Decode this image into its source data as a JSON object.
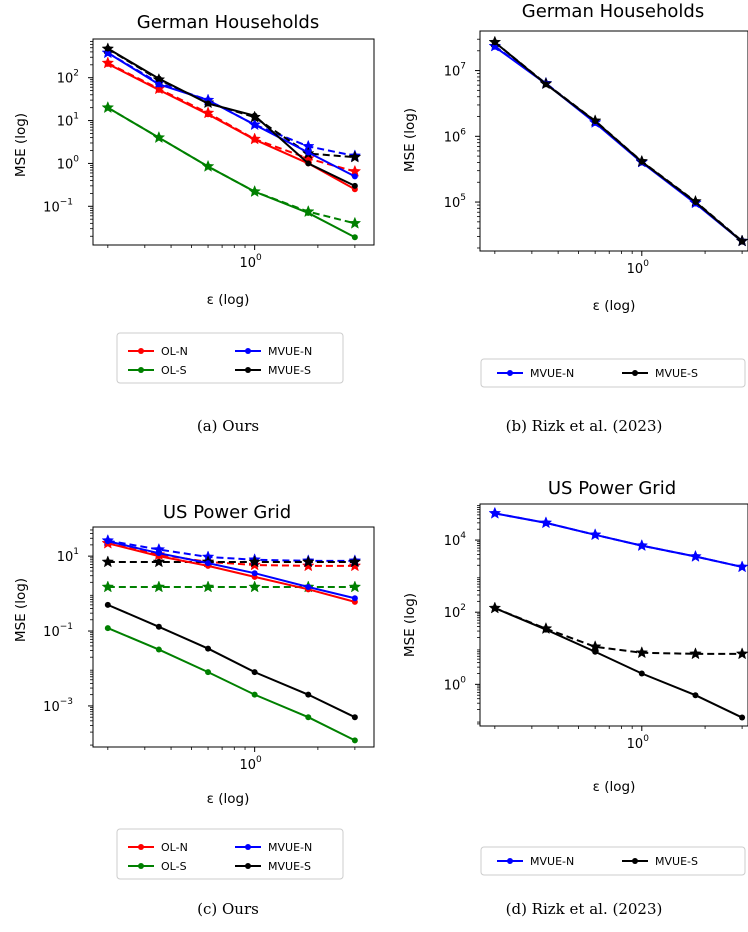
{
  "chart_data": [
    {
      "panel": "a",
      "type": "line",
      "title": "German Households",
      "xlabel": "ε (log)",
      "ylabel": "MSE (log)",
      "xscale": "log",
      "yscale": "log",
      "xlim": [
        0.17,
        3.7
      ],
      "ylim": [
        0.0125,
        800
      ],
      "x": [
        0.2,
        0.35,
        0.6,
        1.0,
        1.8,
        3.0
      ],
      "xticks": [
        {
          "value": 1,
          "label": "10",
          "exp": "0"
        }
      ],
      "yticks": [
        {
          "value": 0.1,
          "label": "10",
          "exp": "−1"
        },
        {
          "value": 1,
          "label": "10",
          "exp": "0"
        },
        {
          "value": 10,
          "label": "10",
          "exp": "1"
        },
        {
          "value": 100,
          "label": "10",
          "exp": "2"
        }
      ],
      "series": [
        {
          "name": "OL-N",
          "color": "#ff0000",
          "style": "solid",
          "marker": "dot",
          "values": [
            210,
            52,
            14,
            3.6,
            1.0,
            0.25
          ]
        },
        {
          "name": "",
          "color": "#ff0000",
          "style": "dashed",
          "marker": "star",
          "values": [
            220,
            55,
            15,
            3.7,
            1.3,
            0.65
          ]
        },
        {
          "name": "OL-S",
          "color": "#008000",
          "style": "solid",
          "marker": "dot",
          "values": [
            20,
            4.0,
            0.85,
            0.22,
            0.07,
            0.019
          ]
        },
        {
          "name": "",
          "color": "#008000",
          "style": "dashed",
          "marker": "star",
          "values": [
            20,
            4.0,
            0.85,
            0.22,
            0.075,
            0.04
          ]
        },
        {
          "name": "MVUE-N",
          "color": "#0000ff",
          "style": "solid",
          "marker": "dot",
          "values": [
            380,
            70,
            30,
            8.0,
            1.8,
            0.5
          ]
        },
        {
          "name": "",
          "color": "#0000ff",
          "style": "dashed",
          "marker": "star",
          "values": [
            380,
            75,
            30,
            8.0,
            2.5,
            1.5
          ]
        },
        {
          "name": "MVUE-S",
          "color": "#000000",
          "style": "solid",
          "marker": "dot",
          "values": [
            480,
            95,
            25,
            13,
            1.0,
            0.3
          ]
        },
        {
          "name": "",
          "color": "#000000",
          "style": "dashed",
          "marker": "star",
          "values": [
            470,
            90,
            26,
            12,
            1.7,
            1.4
          ]
        }
      ],
      "legend": {
        "placement": "below",
        "columns": 2,
        "entries": [
          {
            "name": "OL-N",
            "color": "#ff0000"
          },
          {
            "name": "MVUE-N",
            "color": "#0000ff"
          },
          {
            "name": "OL-S",
            "color": "#008000"
          },
          {
            "name": "MVUE-S",
            "color": "#000000"
          }
        ]
      },
      "caption": "(a) Ours"
    },
    {
      "panel": "b",
      "type": "line",
      "title": "German Households",
      "xlabel": "ε (log)",
      "ylabel": "MSE (log)",
      "xscale": "log",
      "yscale": "log",
      "xlim": [
        0.17,
        3.2
      ],
      "ylim": [
        18000,
        40000000
      ],
      "x": [
        0.2,
        0.35,
        0.6,
        1.0,
        1.8,
        3.0
      ],
      "xticks": [
        {
          "value": 1,
          "label": "10",
          "exp": "0"
        }
      ],
      "yticks": [
        {
          "value": 100000,
          "label": "10",
          "exp": "5"
        },
        {
          "value": 1000000,
          "label": "10",
          "exp": "6"
        },
        {
          "value": 10000000,
          "label": "10",
          "exp": "7"
        }
      ],
      "series": [
        {
          "name": "MVUE-N",
          "color": "#0000ff",
          "style": "solid",
          "marker": "dot",
          "values": [
            23000000,
            6300000,
            1600000,
            400000,
            95000,
            25000
          ]
        },
        {
          "name": "",
          "color": "#0000ff",
          "style": "dashed",
          "marker": "star",
          "values": [
            23500000,
            6400000,
            1620000,
            405000,
            97000,
            25500
          ]
        },
        {
          "name": "MVUE-S",
          "color": "#000000",
          "style": "solid",
          "marker": "dot",
          "values": [
            27000000,
            6200000,
            1700000,
            410000,
            100000,
            25000
          ]
        },
        {
          "name": "",
          "color": "#000000",
          "style": "dashed",
          "marker": "star",
          "values": [
            27000000,
            6300000,
            1720000,
            415000,
            102000,
            25500
          ]
        }
      ],
      "legend": {
        "placement": "below",
        "columns": 2,
        "entries": [
          {
            "name": "MVUE-N",
            "color": "#0000ff"
          },
          {
            "name": "MVUE-S",
            "color": "#000000"
          }
        ]
      },
      "caption": "(b) Rizk et al. (2023)"
    },
    {
      "panel": "c",
      "type": "line",
      "title": "US Power Grid",
      "xlabel": "ε (log)",
      "ylabel": "MSE (log)",
      "xscale": "log",
      "yscale": "log",
      "xlim": [
        0.17,
        3.7
      ],
      "ylim": [
        8e-05,
        60
      ],
      "x": [
        0.2,
        0.35,
        0.6,
        1.0,
        1.8,
        3.0
      ],
      "xticks": [
        {
          "value": 1,
          "label": "10",
          "exp": "0"
        }
      ],
      "yticks": [
        {
          "value": 0.001,
          "label": "10",
          "exp": "−3"
        },
        {
          "value": 0.1,
          "label": "10",
          "exp": "−1"
        },
        {
          "value": 10,
          "label": "10",
          "exp": "1"
        }
      ],
      "series": [
        {
          "name": "OL-N",
          "color": "#ff0000",
          "style": "solid",
          "marker": "dot",
          "values": [
            22,
            10,
            5.5,
            2.8,
            1.3,
            0.6
          ]
        },
        {
          "name": "",
          "color": "#ff0000",
          "style": "dashed",
          "marker": "star",
          "values": [
            22,
            11,
            7.0,
            5.8,
            5.5,
            5.5
          ]
        },
        {
          "name": "OL-S",
          "color": "#008000",
          "style": "solid",
          "marker": "dot",
          "values": [
            0.12,
            0.032,
            0.008,
            0.002,
            0.0005,
            0.00012
          ]
        },
        {
          "name": "",
          "color": "#008000",
          "style": "dashed",
          "marker": "star",
          "values": [
            1.5,
            1.5,
            1.5,
            1.5,
            1.5,
            1.5
          ]
        },
        {
          "name": "MVUE-N",
          "color": "#0000ff",
          "style": "solid",
          "marker": "dot",
          "values": [
            25,
            12,
            6.5,
            3.5,
            1.5,
            0.75
          ]
        },
        {
          "name": "",
          "color": "#0000ff",
          "style": "dashed",
          "marker": "star",
          "values": [
            26,
            15,
            9.5,
            8.0,
            7.5,
            7.5
          ]
        },
        {
          "name": "MVUE-S",
          "color": "#000000",
          "style": "solid",
          "marker": "dot",
          "values": [
            0.5,
            0.13,
            0.034,
            0.008,
            0.002,
            0.0005
          ]
        },
        {
          "name": "",
          "color": "#000000",
          "style": "dashed",
          "marker": "star",
          "values": [
            7.0,
            7.0,
            7.0,
            7.0,
            7.0,
            7.0
          ]
        }
      ],
      "legend": {
        "placement": "below",
        "columns": 2,
        "entries": [
          {
            "name": "OL-N",
            "color": "#ff0000"
          },
          {
            "name": "MVUE-N",
            "color": "#0000ff"
          },
          {
            "name": "OL-S",
            "color": "#008000"
          },
          {
            "name": "MVUE-S",
            "color": "#000000"
          }
        ]
      },
      "caption": "(c) Ours"
    },
    {
      "panel": "d",
      "type": "line",
      "title": "US Power Grid",
      "xlabel": "ε (log)",
      "ylabel": "MSE (log)",
      "xscale": "log",
      "yscale": "log",
      "xlim": [
        0.17,
        3.2
      ],
      "ylim": [
        0.07,
        100000
      ],
      "x": [
        0.2,
        0.35,
        0.6,
        1.0,
        1.8,
        3.0
      ],
      "xticks": [
        {
          "value": 1,
          "label": "10",
          "exp": "0"
        }
      ],
      "yticks": [
        {
          "value": 1,
          "label": "10",
          "exp": "0"
        },
        {
          "value": 100,
          "label": "10",
          "exp": "2"
        },
        {
          "value": 10000,
          "label": "10",
          "exp": "4"
        }
      ],
      "series": [
        {
          "name": "MVUE-N",
          "color": "#0000ff",
          "style": "solid",
          "marker": "dot",
          "values": [
            55000,
            30000,
            14000,
            7000,
            3500,
            1800
          ]
        },
        {
          "name": "",
          "color": "#0000ff",
          "style": "dashed",
          "marker": "star",
          "values": [
            55000,
            30000,
            14000,
            7000,
            3500,
            1800
          ]
        },
        {
          "name": "MVUE-S",
          "color": "#000000",
          "style": "solid",
          "marker": "dot",
          "values": [
            130,
            33,
            8,
            2,
            0.5,
            0.12
          ]
        },
        {
          "name": "",
          "color": "#000000",
          "style": "dashed",
          "marker": "star",
          "values": [
            130,
            35,
            11,
            7.5,
            7.0,
            7.0
          ]
        }
      ],
      "legend": {
        "placement": "below",
        "columns": 2,
        "entries": [
          {
            "name": "MVUE-N",
            "color": "#0000ff"
          },
          {
            "name": "MVUE-S",
            "color": "#000000"
          }
        ]
      },
      "caption": "(d) Rizk et al. (2023)"
    }
  ]
}
